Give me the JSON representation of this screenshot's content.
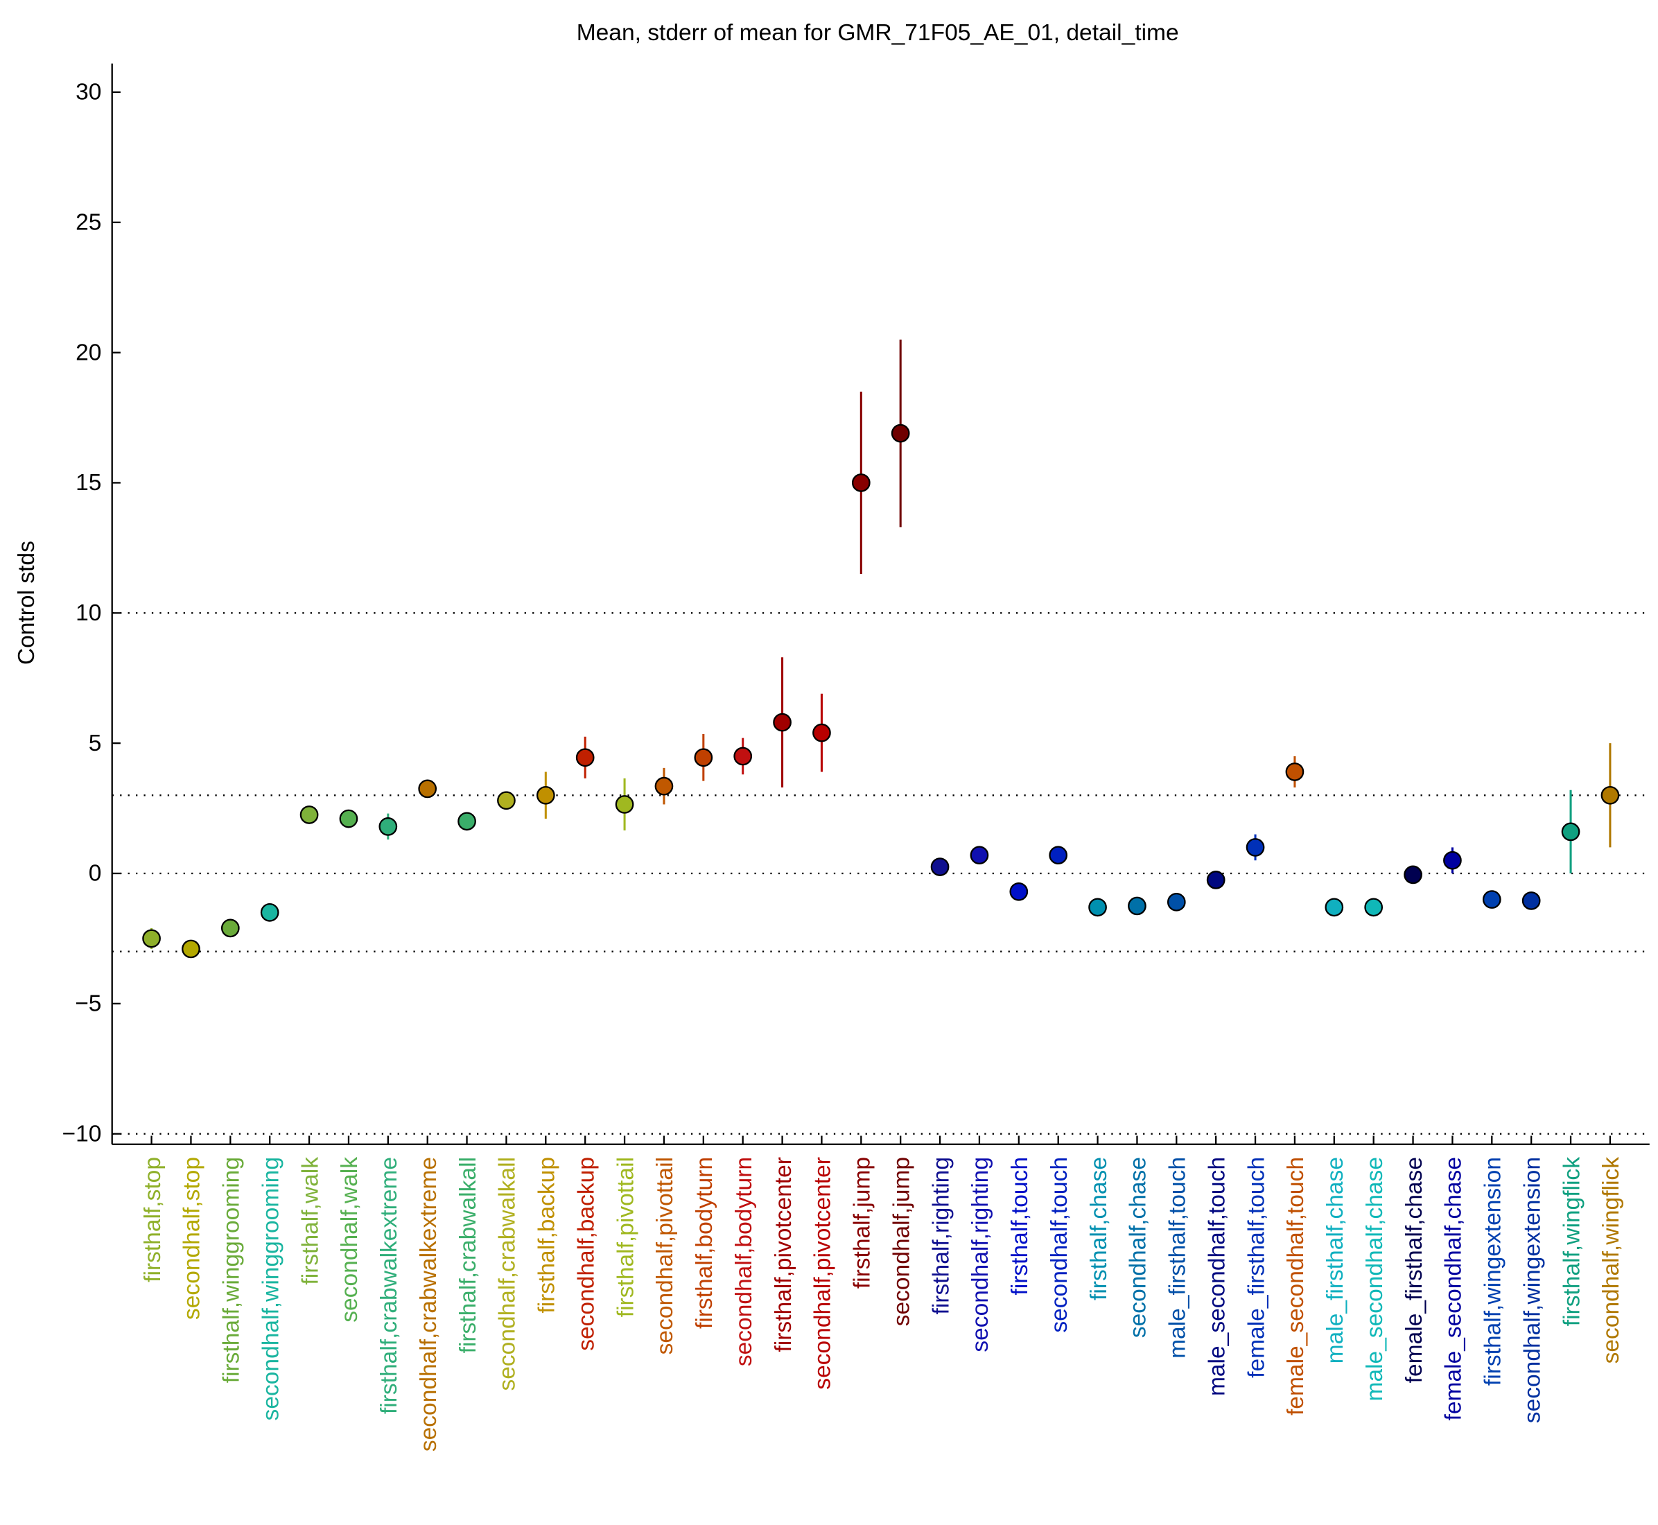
{
  "chart_data": {
    "type": "errorbar",
    "title": "Mean, stderr of mean for GMR_71F05_AE_01, detail_time",
    "y_label": "Control stds",
    "categories": [
      "firsthalf,stop",
      "secondhalf,stop",
      "firsthalf,winggrooming",
      "secondhalf,winggrooming",
      "firsthalf,walk",
      "secondhalf,walk",
      "firsthalf,crabwalkextreme",
      "secondhalf,crabwalkextreme",
      "firsthalf,crabwalkall",
      "secondhalf,crabwalkall",
      "firsthalf,backup",
      "secondhalf,backup",
      "firsthalf,pivottail",
      "secondhalf,pivottail",
      "firsthalf,bodyturn",
      "secondhalf,bodyturn",
      "firsthalf,pivotcenter",
      "secondhalf,pivotcenter",
      "firsthalf,jump",
      "secondhalf,jump",
      "firsthalf,righting",
      "secondhalf,righting",
      "firsthalf,touch",
      "secondhalf,touch",
      "firsthalf,chase",
      "secondhalf,chase",
      "male_firsthalf,touch",
      "male_secondhalf,touch",
      "female_firsthalf,touch",
      "female_secondhalf,touch",
      "male_firsthalf,chase",
      "male_secondhalf,chase",
      "female_firsthalf,chase",
      "female_secondhalf,chase",
      "firsthalf,wingextension",
      "secondhalf,wingextension",
      "firsthalf,wingflick",
      "secondhalf,wingflick"
    ],
    "values": [
      -2.5,
      -2.9,
      -2.1,
      -1.5,
      2.25,
      2.1,
      1.8,
      3.25,
      2.0,
      2.8,
      3.0,
      4.45,
      2.65,
      3.35,
      4.45,
      4.5,
      5.8,
      5.4,
      15.0,
      16.9,
      0.25,
      0.7,
      -0.7,
      0.7,
      -1.3,
      -1.25,
      -1.1,
      -0.25,
      1.0,
      3.9,
      -1.3,
      -1.3,
      -0.05,
      0.5,
      -1.0,
      -1.05,
      1.6,
      3.0
    ],
    "errors": [
      0.4,
      0.2,
      0.3,
      0.3,
      0.2,
      0.2,
      0.5,
      0.3,
      0.3,
      0.2,
      0.9,
      0.8,
      1.0,
      0.7,
      0.9,
      0.7,
      2.5,
      1.5,
      3.5,
      3.6,
      0.2,
      0.3,
      0.3,
      0.3,
      0.15,
      0.15,
      0.15,
      0.15,
      0.5,
      0.6,
      0.15,
      0.15,
      0.2,
      0.5,
      0.15,
      0.15,
      1.6,
      2.0
    ],
    "colors": [
      "#8fb02a",
      "#b3a800",
      "#6aab3a",
      "#1ab5a0",
      "#7fb23a",
      "#55b050",
      "#2fae7a",
      "#b87000",
      "#3aae6a",
      "#b0b020",
      "#c09000",
      "#c02000",
      "#a0b820",
      "#c05800",
      "#c04000",
      "#c01010",
      "#a00000",
      "#b80000",
      "#880000",
      "#700000",
      "#101090",
      "#1010b0",
      "#0010c8",
      "#0020c0",
      "#0090b0",
      "#0070a8",
      "#0050a8",
      "#000880",
      "#0030b8",
      "#c05000",
      "#10b0c0",
      "#10b8b8",
      "#000050",
      "#0000a0",
      "#0040b0",
      "#0030a0",
      "#10a080",
      "#b07800"
    ],
    "ylim": [
      -10.4,
      31.1
    ],
    "yticks": [
      {
        "value": -10,
        "label": "−10"
      },
      {
        "value": -5,
        "label": "−5"
      },
      0,
      5,
      10,
      15,
      20,
      25,
      30
    ],
    "reference_lines": [
      -10,
      -3,
      0,
      3,
      10
    ]
  }
}
